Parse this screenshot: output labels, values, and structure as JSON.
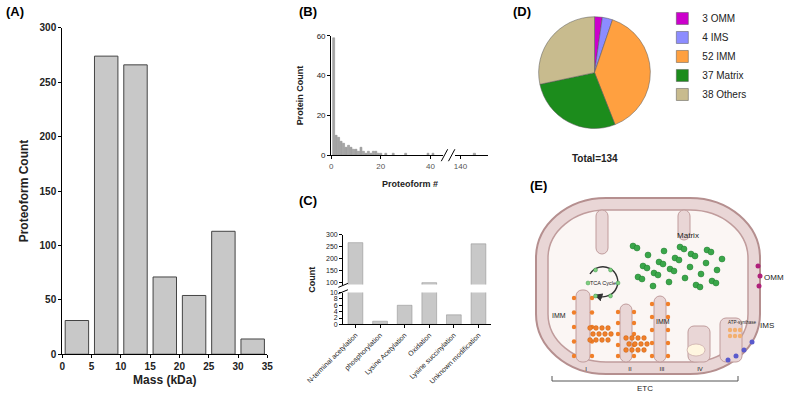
{
  "chart_data": [
    {
      "panel": "(A)",
      "type": "bar",
      "x_label": "Mass (kDa)",
      "y_label": "Proteoform Count",
      "bins": [
        0,
        5,
        10,
        15,
        20,
        25,
        30,
        35
      ],
      "values": [
        31,
        274,
        266,
        71,
        54,
        113,
        14
      ],
      "color": "#c8c8c8",
      "grid": false,
      "xlim": [
        0,
        35
      ],
      "xticks": [
        0,
        5,
        10,
        15,
        20,
        25,
        30,
        35
      ],
      "ylim": [
        0,
        300
      ],
      "yticks": [
        0,
        50,
        100,
        150,
        200,
        250,
        300
      ]
    },
    {
      "panel": "(B)",
      "type": "bar",
      "x_label": "Proteoform #",
      "y_label": "Protein Count",
      "x": [
        1,
        2,
        3,
        4,
        5,
        6,
        7,
        8,
        9,
        10,
        11,
        12,
        13,
        14,
        15,
        16,
        17,
        18,
        19,
        20,
        22,
        25,
        30,
        39,
        41,
        145
      ],
      "values": [
        59,
        10,
        9,
        7,
        6,
        4,
        5,
        4,
        3,
        3,
        2,
        4,
        2,
        1,
        2,
        1,
        2,
        2,
        1,
        1,
        1,
        1,
        1,
        1,
        1,
        1
      ],
      "color": "#a8a8a8",
      "grid": false,
      "xlim": [
        [
          0,
          45
        ],
        [
          138,
          150
        ]
      ],
      "xticks": [
        0,
        20,
        40,
        140
      ],
      "ylim": [
        0,
        60
      ],
      "yticks": [
        0,
        20,
        40,
        60
      ]
    },
    {
      "panel": "(C)",
      "type": "bar",
      "y_label": "Count",
      "categories": [
        "N-terminal acetylation",
        "phosphorylation",
        "Lysine Acetylation",
        "Oxidation",
        "Lysine succinylation",
        "Unknown modification"
      ],
      "values": [
        267,
        1,
        6,
        98,
        3,
        262
      ],
      "color": "#c8c8c8",
      "grid": false,
      "ylim": [
        [
          0,
          10
        ],
        [
          90,
          300
        ]
      ],
      "yticks": [
        0,
        2,
        4,
        6,
        8,
        10,
        100,
        150,
        200,
        250,
        300
      ]
    },
    {
      "panel": "(D)",
      "type": "pie",
      "categories": [
        "3 OMM",
        "4 IMS",
        "52 IMM",
        "37 Matrix",
        "38 Others"
      ],
      "values": [
        3,
        4,
        52,
        37,
        38
      ],
      "colors": [
        "#cc00cc",
        "#8c8cff",
        "#ffa040",
        "#1c8c1c",
        "#c8bb8e"
      ],
      "legend": "right",
      "annotations": [
        "Total=134"
      ]
    }
  ],
  "diagram": {
    "panel": "(E)",
    "tca": "TCA Cycle",
    "matrix": "Matrix",
    "omm": "OMM",
    "ims": "IMS",
    "imm_labels": [
      "IMM",
      "IMM"
    ],
    "complexes": [
      "I",
      "II",
      "III",
      "IV"
    ],
    "atp": "ATP-synthase",
    "etc": "ETC"
  }
}
